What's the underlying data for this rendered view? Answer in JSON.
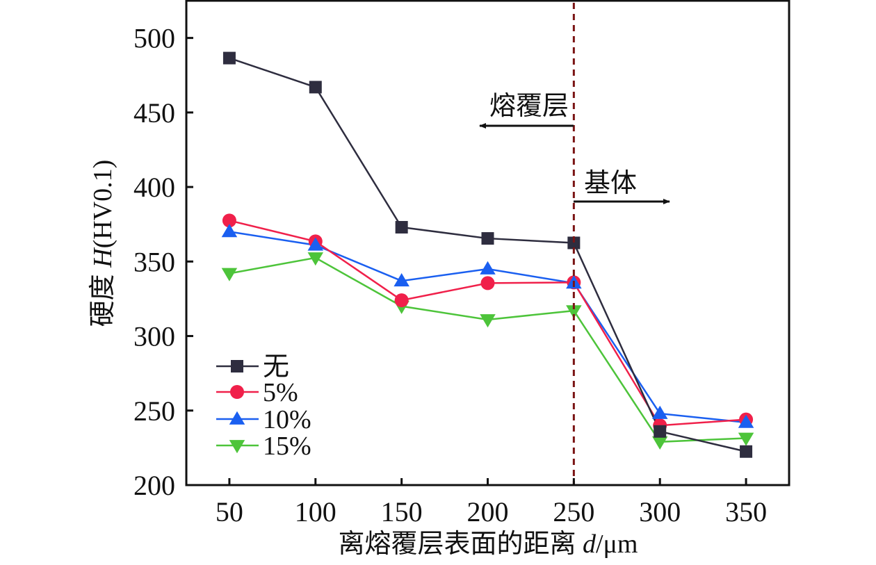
{
  "chart_data": {
    "type": "line",
    "title": "",
    "xlabel": "离熔覆层表面的距离 d/μm",
    "xlabel_parts": {
      "prefix": "离熔覆层表面的距离 ",
      "var": "d",
      "unit": "/μm"
    },
    "ylabel": "硬度 H(HV0.1)",
    "ylabel_parts": {
      "prefix": "硬度 ",
      "var": "H",
      "unit": "(HV0.1)"
    },
    "x": [
      50,
      100,
      150,
      200,
      250,
      300,
      350
    ],
    "x_tick_labels": [
      "50",
      "100",
      "150",
      "200",
      "250",
      "300",
      "350"
    ],
    "y_ticks": [
      200,
      250,
      300,
      350,
      400,
      450,
      500
    ],
    "y_tick_labels": [
      "200",
      "250",
      "300",
      "350",
      "400",
      "450",
      "500"
    ],
    "xlim": [
      25,
      375
    ],
    "ylim": [
      200,
      525
    ],
    "grid": false,
    "legend_position": "bottom-left",
    "series": [
      {
        "name": "无",
        "marker": "square",
        "color": "#2e2d3f",
        "values": [
          486.5,
          467,
          373,
          365.5,
          362.5,
          236,
          222.5
        ]
      },
      {
        "name": "5%",
        "marker": "circle",
        "color": "#f0204a",
        "values": [
          377.5,
          363.5,
          324,
          335.5,
          336,
          240,
          244
        ]
      },
      {
        "name": "10%",
        "marker": "triangle-up",
        "color": "#1a5ff0",
        "values": [
          370,
          361,
          337,
          345,
          335.5,
          248,
          242
        ]
      },
      {
        "name": "15%",
        "marker": "triangle-down",
        "color": "#4dc43a",
        "values": [
          342,
          352.5,
          320,
          311,
          317,
          229,
          231.5
        ]
      }
    ],
    "reference_line": {
      "axis": "x",
      "value": 250,
      "style": "dashed",
      "color": "#7a1414"
    },
    "annotations": [
      {
        "text": "熔覆层",
        "direction": "left"
      },
      {
        "text": "基体",
        "direction": "right"
      }
    ]
  }
}
